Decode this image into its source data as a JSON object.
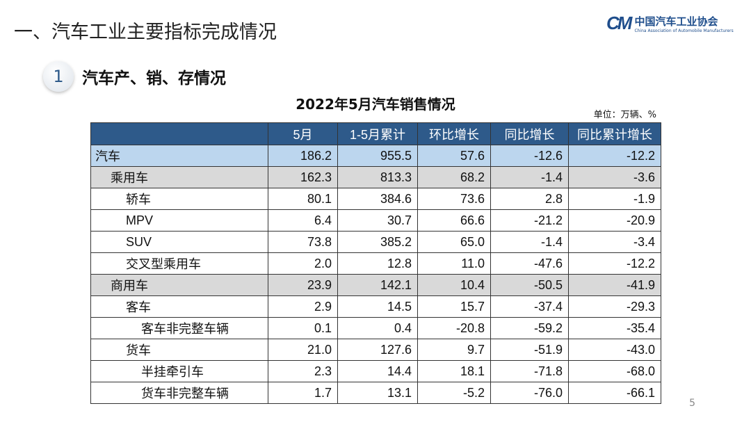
{
  "title": "一、汽车工业主要指标完成情况",
  "logo": {
    "mark": "CM",
    "cn": "中国汽车工业协会",
    "en": "China Association of Automobile Manufacturers"
  },
  "section": {
    "number": "1",
    "label": "汽车产、销、存情况"
  },
  "table": {
    "title": "2022年5月汽车销售情况",
    "unit": "单位：万辆、%",
    "headers": [
      "",
      "5月",
      "1-5月累计",
      "环比增长",
      "同比增长",
      "同比累计增长"
    ],
    "rows": [
      {
        "name": "汽车",
        "level": 0,
        "style": "top",
        "values": [
          "186.2",
          "955.5",
          "57.6",
          "-12.6",
          "-12.2"
        ]
      },
      {
        "name": "乘用车",
        "level": 1,
        "style": "grey",
        "values": [
          "162.3",
          "813.3",
          "68.2",
          "-1.4",
          "-3.6"
        ]
      },
      {
        "name": "轿车",
        "level": 2,
        "style": "",
        "values": [
          "80.1",
          "384.6",
          "73.6",
          "2.8",
          "-1.9"
        ]
      },
      {
        "name": "MPV",
        "level": 2,
        "style": "",
        "values": [
          "6.4",
          "30.7",
          "66.6",
          "-21.2",
          "-20.9"
        ]
      },
      {
        "name": "SUV",
        "level": 2,
        "style": "",
        "values": [
          "73.8",
          "385.2",
          "65.0",
          "-1.4",
          "-3.4"
        ]
      },
      {
        "name": "交叉型乘用车",
        "level": 2,
        "style": "",
        "values": [
          "2.0",
          "12.8",
          "11.0",
          "-47.6",
          "-12.2"
        ]
      },
      {
        "name": "商用车",
        "level": 1,
        "style": "grey",
        "values": [
          "23.9",
          "142.1",
          "10.4",
          "-50.5",
          "-41.9"
        ]
      },
      {
        "name": "客车",
        "level": 2,
        "style": "",
        "values": [
          "2.9",
          "14.5",
          "15.7",
          "-37.4",
          "-29.3"
        ]
      },
      {
        "name": "客车非完整车辆",
        "level": 3,
        "style": "",
        "values": [
          "0.1",
          "0.4",
          "-20.8",
          "-59.2",
          "-35.4"
        ]
      },
      {
        "name": "货车",
        "level": 2,
        "style": "",
        "values": [
          "21.0",
          "127.6",
          "9.7",
          "-51.9",
          "-43.0"
        ]
      },
      {
        "name": "半挂牵引车",
        "level": 3,
        "style": "",
        "values": [
          "2.3",
          "14.4",
          "18.1",
          "-71.8",
          "-68.0"
        ]
      },
      {
        "name": "货车非完整车辆",
        "level": 3,
        "style": "",
        "values": [
          "1.7",
          "13.1",
          "-5.2",
          "-76.0",
          "-66.1"
        ]
      }
    ]
  },
  "page_number": "5"
}
